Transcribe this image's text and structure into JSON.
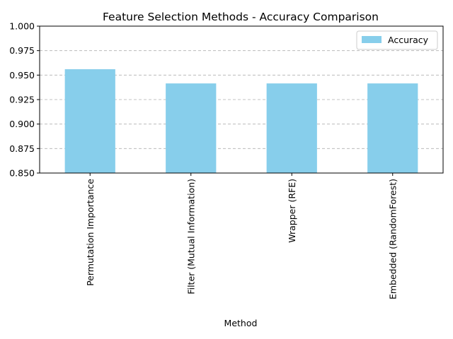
{
  "chart_data": {
    "type": "bar",
    "title": "Feature Selection Methods - Accuracy Comparison",
    "xlabel": "Method",
    "ylabel": "",
    "categories": [
      "Permutation Importance",
      "Filter (Mutual Information)",
      "Wrapper (RFE)",
      "Embedded (RandomForest)"
    ],
    "series": [
      {
        "name": "Accuracy",
        "values": [
          0.956,
          0.9415,
          0.9415,
          0.9415
        ],
        "color": "#87CEEB"
      }
    ],
    "ylim": [
      0.85,
      1.0
    ],
    "yticks": [
      "0.850",
      "0.875",
      "0.900",
      "0.925",
      "0.950",
      "0.975",
      "1.000"
    ],
    "grid": "y-dashed",
    "legend_position": "top-right"
  }
}
